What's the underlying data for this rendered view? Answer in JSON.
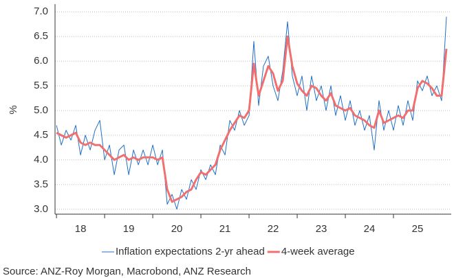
{
  "chart_data": {
    "type": "line",
    "y_label": "%",
    "source": "Source: ANZ-Roy Morgan, Macrobond, ANZ Research",
    "x": [
      18.0,
      18.1,
      18.2,
      18.3,
      18.4,
      18.5,
      18.6,
      18.7,
      18.8,
      18.9,
      19.0,
      19.1,
      19.2,
      19.3,
      19.4,
      19.5,
      19.6,
      19.7,
      19.8,
      19.9,
      20.0,
      20.1,
      20.2,
      20.3,
      20.4,
      20.5,
      20.6,
      20.7,
      20.8,
      20.9,
      21.0,
      21.1,
      21.2,
      21.3,
      21.4,
      21.5,
      21.6,
      21.7,
      21.8,
      21.9,
      22.0,
      22.1,
      22.2,
      22.3,
      22.4,
      22.5,
      22.6,
      22.7,
      22.8,
      22.9,
      23.0,
      23.1,
      23.2,
      23.3,
      23.4,
      23.5,
      23.6,
      23.7,
      23.8,
      23.9,
      24.0,
      24.1,
      24.2,
      24.3,
      24.4,
      24.5,
      24.6,
      24.7,
      24.8,
      24.9,
      25.0,
      25.1,
      25.2,
      25.3,
      25.4,
      25.5,
      25.6,
      25.7,
      25.8,
      25.9,
      26.0,
      26.1
    ],
    "series": [
      {
        "name": "Inflation expectations 2-yr ahead",
        "color": "#1f6fc5",
        "width": 1,
        "values": [
          4.7,
          4.3,
          4.6,
          4.4,
          4.7,
          4.1,
          4.5,
          4.2,
          4.6,
          4.8,
          4.0,
          4.3,
          3.7,
          4.2,
          4.3,
          3.7,
          4.2,
          3.9,
          4.2,
          3.9,
          4.3,
          3.9,
          4.2,
          3.1,
          3.3,
          3.0,
          3.4,
          3.2,
          3.6,
          3.4,
          3.8,
          3.6,
          3.9,
          3.7,
          4.3,
          4.1,
          4.8,
          4.6,
          5.0,
          4.7,
          4.9,
          6.4,
          5.1,
          5.9,
          6.1,
          5.5,
          5.2,
          5.8,
          6.8,
          5.7,
          5.3,
          5.7,
          5.0,
          5.7,
          5.2,
          5.5,
          5.0,
          5.5,
          4.9,
          5.3,
          4.8,
          5.2,
          4.7,
          5.0,
          4.6,
          4.9,
          4.2,
          5.2,
          4.6,
          5.0,
          4.6,
          5.1,
          4.7,
          5.2,
          4.8,
          5.6,
          5.4,
          5.7,
          5.3,
          5.5,
          5.2,
          6.9
        ]
      },
      {
        "name": "4-week average",
        "color": "#f07070",
        "width": 3,
        "values": [
          4.55,
          4.5,
          4.45,
          4.5,
          4.55,
          4.35,
          4.3,
          4.35,
          4.3,
          4.3,
          4.2,
          4.1,
          4.0,
          4.05,
          4.1,
          4.0,
          4.05,
          4.0,
          4.05,
          4.05,
          4.05,
          4.0,
          4.05,
          3.4,
          3.15,
          3.2,
          3.25,
          3.35,
          3.4,
          3.6,
          3.75,
          3.7,
          3.8,
          3.9,
          4.2,
          4.4,
          4.6,
          4.75,
          4.9,
          4.85,
          5.0,
          5.95,
          5.3,
          5.6,
          5.9,
          5.75,
          5.4,
          5.6,
          6.5,
          5.9,
          5.55,
          5.4,
          5.3,
          5.5,
          5.45,
          5.3,
          5.2,
          5.35,
          5.1,
          5.05,
          5.0,
          5.05,
          4.9,
          4.85,
          4.8,
          4.7,
          4.65,
          5.0,
          4.75,
          4.8,
          4.85,
          4.9,
          4.85,
          5.0,
          5.0,
          5.45,
          5.6,
          5.55,
          5.45,
          5.3,
          5.3,
          6.25
        ]
      }
    ],
    "xlim": [
      17.97,
      26.2
    ],
    "xticks": [
      18,
      19,
      20,
      21,
      22,
      23,
      24,
      25
    ],
    "ylim": [
      2.9,
      7.1
    ],
    "yticks": [
      {
        "value": 3,
        "label": "3.0"
      },
      {
        "value": 3.5,
        "label": "3.5"
      },
      {
        "value": 4,
        "label": "4.0"
      },
      {
        "value": 4.5,
        "label": "4.5"
      },
      {
        "value": 5,
        "label": "5.0"
      },
      {
        "value": 5.5,
        "label": "5.5"
      },
      {
        "value": 6,
        "label": "6.0"
      },
      {
        "value": 6.5,
        "label": "6.5"
      },
      {
        "value": 7,
        "label": "7.0"
      }
    ],
    "grid": true,
    "legend": "bottom"
  }
}
